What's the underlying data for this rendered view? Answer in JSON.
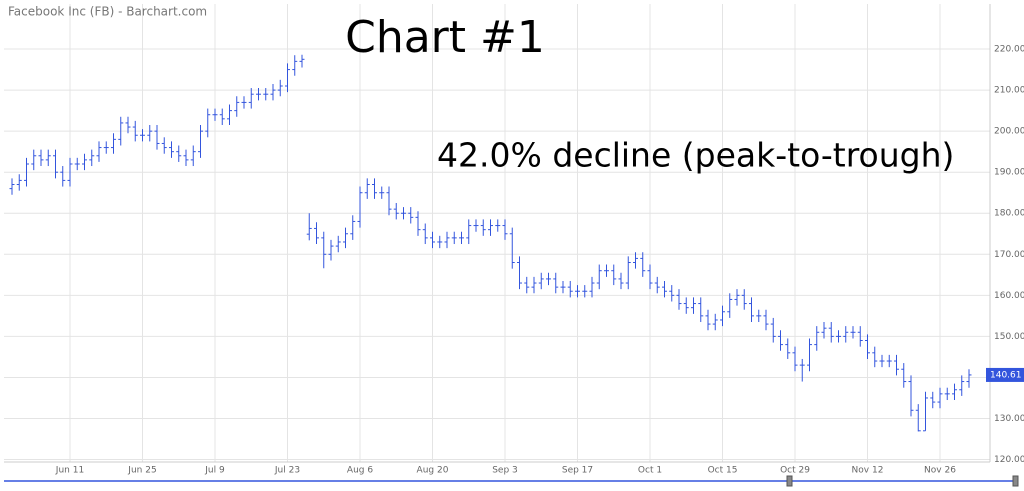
{
  "chart_data": {
    "type": "ohlc",
    "source": "Facebook Inc (FB) - Barchart.com",
    "title": "Chart #1",
    "annotation": "42.0% decline (peak-to-trough)",
    "color": "#3355dd",
    "grid": true,
    "ylim": [
      119.4,
      230
    ],
    "yticks": [
      {
        "value": 120,
        "label": "120.00"
      },
      {
        "value": 130,
        "label": "130.00"
      },
      {
        "value": 140,
        "label": "140.00"
      },
      {
        "value": 150,
        "label": "150.00"
      },
      {
        "value": 160,
        "label": "160.00"
      },
      {
        "value": 170,
        "label": "170.00"
      },
      {
        "value": 180,
        "label": "180.00"
      },
      {
        "value": 190,
        "label": "190.00"
      },
      {
        "value": 200,
        "label": "200.00"
      },
      {
        "value": 210,
        "label": "210.00"
      },
      {
        "value": 220,
        "label": "220.00"
      }
    ],
    "categories": [
      null,
      null,
      null,
      null,
      null,
      null,
      null,
      null,
      "Jun 11",
      null,
      null,
      null,
      null,
      null,
      null,
      null,
      null,
      null,
      "Jun 25",
      null,
      null,
      null,
      null,
      null,
      null,
      null,
      null,
      null,
      "Jul 9",
      null,
      null,
      null,
      null,
      null,
      null,
      null,
      null,
      null,
      "Jul 23",
      null,
      null,
      null,
      null,
      null,
      null,
      null,
      null,
      null,
      "Aug 6",
      null,
      null,
      null,
      null,
      null,
      null,
      null,
      null,
      null,
      "Aug 20",
      null,
      null,
      null,
      null,
      null,
      null,
      null,
      null,
      null,
      "Sep 3",
      null,
      null,
      null,
      null,
      null,
      null,
      null,
      null,
      null,
      "Sep 17",
      null,
      null,
      null,
      null,
      null,
      null,
      null,
      null,
      null,
      "Oct 1",
      null,
      null,
      null,
      null,
      null,
      null,
      null,
      null,
      null,
      "Oct 15",
      null,
      null,
      null,
      null,
      null,
      null,
      null,
      null,
      null,
      "Oct 29",
      null,
      null,
      null,
      null,
      null,
      null,
      null,
      null,
      null,
      "Nov 12",
      null,
      null,
      null,
      null,
      null,
      null,
      null,
      null,
      null,
      "Nov 26",
      null,
      null,
      null,
      null
    ],
    "open": [
      186,
      187,
      188,
      192,
      194,
      193,
      194,
      190,
      188,
      192,
      192,
      193,
      194,
      196,
      196,
      198,
      202,
      201,
      199,
      199,
      200,
      197,
      196,
      195,
      194,
      193,
      195,
      200,
      204,
      204,
      203,
      205,
      207,
      207,
      209,
      209,
      209,
      210,
      211,
      215,
      217,
      174.9,
      176.3,
      174,
      170,
      172,
      173,
      175,
      178,
      185,
      187,
      185,
      185,
      181,
      180,
      180,
      179,
      176,
      174,
      173,
      173,
      174,
      174,
      174,
      177,
      177,
      176,
      177,
      177,
      175,
      168,
      163,
      162,
      163,
      164,
      164,
      162,
      162,
      161,
      161,
      161,
      163,
      166,
      166,
      164,
      163,
      168,
      169,
      166,
      163,
      162,
      161,
      160,
      158,
      157,
      158,
      155,
      153,
      154,
      156,
      159,
      160,
      158,
      155,
      155,
      153,
      150,
      148,
      146,
      143,
      143,
      148,
      151,
      152,
      150,
      150,
      151,
      151,
      149,
      146,
      144,
      144,
      144,
      142,
      139,
      132,
      127,
      135,
      134,
      136,
      136,
      137,
      139
    ],
    "high": [
      188.5,
      189.5,
      193.5,
      195.5,
      195.5,
      195.5,
      195.5,
      191.5,
      193.5,
      193.5,
      194.5,
      195.5,
      197.5,
      197.5,
      199.5,
      203.5,
      203.5,
      202.5,
      200.5,
      201.5,
      201.5,
      198.5,
      197.5,
      196.5,
      195.5,
      196.5,
      201.5,
      205.5,
      205.5,
      205.5,
      206.5,
      208.5,
      208.5,
      210.5,
      210.5,
      210.5,
      211.5,
      212.5,
      216.5,
      218.5,
      218.6,
      180,
      177.8,
      175.5,
      173.5,
      174.5,
      176.5,
      179.5,
      186.5,
      188.5,
      188.5,
      186.5,
      186.5,
      182.5,
      181.5,
      181.5,
      180.5,
      177.5,
      175.5,
      174.5,
      175.5,
      175.5,
      175.5,
      178.5,
      178.5,
      178.5,
      178.5,
      178.5,
      178.5,
      176.5,
      169.5,
      164.5,
      164.5,
      165.5,
      165.5,
      165.5,
      163.5,
      163.5,
      162.5,
      162.5,
      164.5,
      167.5,
      167.5,
      167.5,
      165.5,
      169.5,
      170.5,
      170.5,
      167.5,
      164.5,
      163.5,
      162.5,
      161.5,
      159.5,
      159.5,
      159.5,
      156.5,
      155.5,
      157.5,
      160.5,
      161.5,
      161.5,
      159.5,
      156.5,
      156.5,
      154.5,
      151.5,
      149.5,
      147.5,
      144.5,
      149.5,
      152.5,
      153.5,
      153.5,
      151.5,
      152.5,
      152.5,
      152.5,
      150.5,
      147.5,
      145.5,
      145.5,
      145.5,
      143.5,
      140.5,
      133.5,
      136.5,
      136.5,
      137.5,
      137.5,
      138.5,
      140.5,
      142
    ],
    "low": [
      184.5,
      185.5,
      186.5,
      190.5,
      191.5,
      191.5,
      188.5,
      186.5,
      186.5,
      190.5,
      190.5,
      191.5,
      192.5,
      194.5,
      194.5,
      196.5,
      199.5,
      197.5,
      197.5,
      197.5,
      195.5,
      194.5,
      193.5,
      192.5,
      191.5,
      191.5,
      193.5,
      198.5,
      202.5,
      201.5,
      201.5,
      203.5,
      205.5,
      205.5,
      207.5,
      207.5,
      207.5,
      208.5,
      209.5,
      213.5,
      215.5,
      173.4,
      172.5,
      166.6,
      168.5,
      170.5,
      171.5,
      173.5,
      176.5,
      183.5,
      183.5,
      183.5,
      179.5,
      178.5,
      178.5,
      177.5,
      174.5,
      172.5,
      171.5,
      171.5,
      171.5,
      172.5,
      172.5,
      172.5,
      175.5,
      174.5,
      174.5,
      175.5,
      173.5,
      166.5,
      161.5,
      160.5,
      160.5,
      161.5,
      162.5,
      160.5,
      160.5,
      159.5,
      159.5,
      159.5,
      159.5,
      161.5,
      164.5,
      162.5,
      161.5,
      161.5,
      166.5,
      164.5,
      161.5,
      160.5,
      159.5,
      158.5,
      156.5,
      155.5,
      155.5,
      153.5,
      151.5,
      151.5,
      152.5,
      154.5,
      157.5,
      156.5,
      153.5,
      153.5,
      151.5,
      148.5,
      146.5,
      144.5,
      141.5,
      139,
      141.5,
      146.5,
      149.5,
      148.5,
      148.5,
      148.5,
      149.5,
      147.5,
      144.5,
      142.5,
      142.5,
      142.5,
      140.5,
      137.5,
      130.5,
      126.85,
      127,
      132.5,
      132.5,
      134.5,
      134.5,
      135.5,
      137.5
    ],
    "close": [
      187,
      188,
      192,
      194,
      193,
      194,
      190,
      188,
      192,
      192,
      193,
      194,
      196,
      196,
      198,
      202,
      201,
      199,
      199,
      200,
      197,
      196,
      195,
      194,
      193,
      195,
      200,
      204,
      204,
      203,
      205,
      207,
      207,
      209,
      209,
      209,
      210,
      211,
      215,
      217,
      217.5,
      176.3,
      174,
      170,
      172,
      173,
      175,
      178,
      185,
      187,
      185,
      185,
      181,
      180,
      180,
      179,
      176,
      174,
      173,
      173,
      174,
      174,
      174,
      177,
      177,
      176,
      177,
      177,
      175,
      168,
      163,
      162,
      163,
      164,
      164,
      162,
      162,
      161,
      161,
      161,
      163,
      166,
      166,
      164,
      163,
      168,
      169,
      166,
      163,
      162,
      161,
      160,
      158,
      157,
      158,
      155,
      153,
      154,
      156,
      159,
      160,
      158,
      155,
      155,
      153,
      150,
      148,
      146,
      143,
      143,
      148,
      151,
      152,
      150,
      150,
      151,
      151,
      149,
      146,
      144,
      144,
      144,
      142,
      139,
      132,
      127,
      135,
      134,
      136,
      136,
      137,
      139,
      140.61
    ]
  }
}
